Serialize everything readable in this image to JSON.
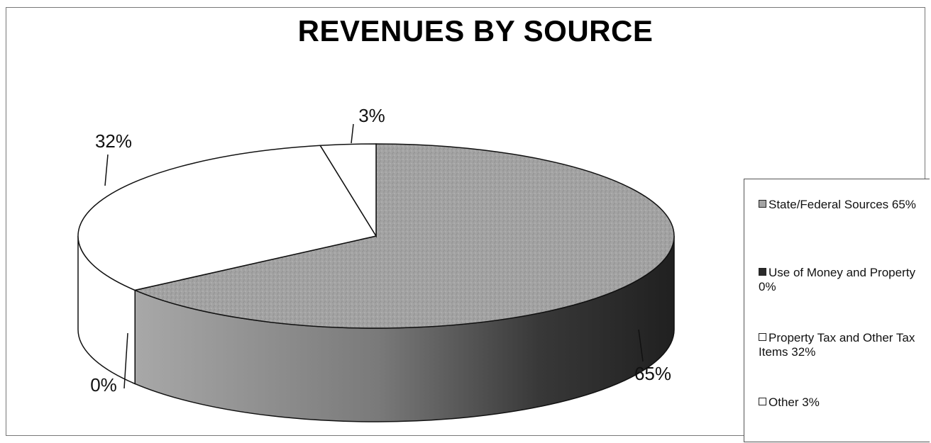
{
  "chart_data": {
    "type": "pie",
    "title": "REVENUES BY SOURCE",
    "slices": [
      {
        "name": "State/Federal Sources 65%",
        "value": 65,
        "label": "65%",
        "color": "#9a9a9a",
        "side_color": "#5a5a5a"
      },
      {
        "name": "Use of Money and Property 0%",
        "value": 0,
        "label": "0%",
        "color": "#2a2a2a",
        "side_color": "#1a1a1a"
      },
      {
        "name": "Property Tax and Other Tax Items 32%",
        "value": 32,
        "label": "32%",
        "color": "#ffffff",
        "side_color": "#ffffff"
      },
      {
        "name": "Other 3%",
        "value": 3,
        "label": "3%",
        "color": "#ffffff",
        "side_color": "#ffffff"
      }
    ],
    "legend_position": "right"
  }
}
